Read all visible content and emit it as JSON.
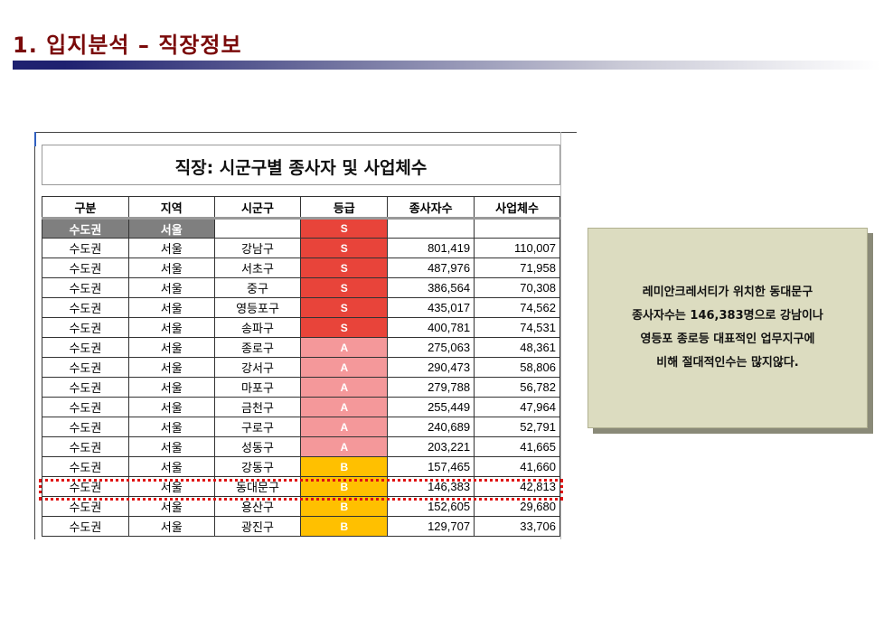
{
  "page": {
    "title": "1. 입지분석 – 직장정보"
  },
  "sheet": {
    "title": "직장: 시군구별 종사자 및 사업체수",
    "headers": [
      "구분",
      "지역",
      "시군구",
      "등급",
      "종사자수",
      "사업체수"
    ],
    "subheader": {
      "region_group": "수도권",
      "region": "서울",
      "grade": "S"
    },
    "rows": [
      {
        "group": "수도권",
        "region": "서울",
        "district": "강남구",
        "grade": "S",
        "workers": "801,419",
        "businesses": "110,007"
      },
      {
        "group": "수도권",
        "region": "서울",
        "district": "서초구",
        "grade": "S",
        "workers": "487,976",
        "businesses": "71,958"
      },
      {
        "group": "수도권",
        "region": "서울",
        "district": "중구",
        "grade": "S",
        "workers": "386,564",
        "businesses": "70,308"
      },
      {
        "group": "수도권",
        "region": "서울",
        "district": "영등포구",
        "grade": "S",
        "workers": "435,017",
        "businesses": "74,562"
      },
      {
        "group": "수도권",
        "region": "서울",
        "district": "송파구",
        "grade": "S",
        "workers": "400,781",
        "businesses": "74,531"
      },
      {
        "group": "수도권",
        "region": "서울",
        "district": "종로구",
        "grade": "A",
        "workers": "275,063",
        "businesses": "48,361"
      },
      {
        "group": "수도권",
        "region": "서울",
        "district": "강서구",
        "grade": "A",
        "workers": "290,473",
        "businesses": "58,806"
      },
      {
        "group": "수도권",
        "region": "서울",
        "district": "마포구",
        "grade": "A",
        "workers": "279,788",
        "businesses": "56,782"
      },
      {
        "group": "수도권",
        "region": "서울",
        "district": "금천구",
        "grade": "A",
        "workers": "255,449",
        "businesses": "47,964"
      },
      {
        "group": "수도권",
        "region": "서울",
        "district": "구로구",
        "grade": "A",
        "workers": "240,689",
        "businesses": "52,791"
      },
      {
        "group": "수도권",
        "region": "서울",
        "district": "성동구",
        "grade": "A",
        "workers": "203,221",
        "businesses": "41,665"
      },
      {
        "group": "수도권",
        "region": "서울",
        "district": "강동구",
        "grade": "B",
        "workers": "157,465",
        "businesses": "41,660"
      },
      {
        "group": "수도권",
        "region": "서울",
        "district": "동대문구",
        "grade": "B",
        "workers": "146,383",
        "businesses": "42,813"
      },
      {
        "group": "수도권",
        "region": "서울",
        "district": "용산구",
        "grade": "B",
        "workers": "152,605",
        "businesses": "29,680"
      },
      {
        "group": "수도권",
        "region": "서울",
        "district": "광진구",
        "grade": "B",
        "workers": "129,707",
        "businesses": "33,706"
      }
    ],
    "highlighted_district": "동대문구"
  },
  "note": {
    "lines": [
      "레미안크레서티가 위치한 동대문구",
      "종사자수는 146,383명으로 강남이나",
      "영등포 종로등 대표적인 업무지구에",
      "비해 절대적인수는 많지않다."
    ]
  },
  "colors": {
    "title": "#7a0a0a",
    "grade_S": "#e8443a",
    "grade_A": "#f4989a",
    "grade_B": "#ffc000",
    "highlight": "#e01010",
    "note_bg": "#dcdcc0"
  }
}
